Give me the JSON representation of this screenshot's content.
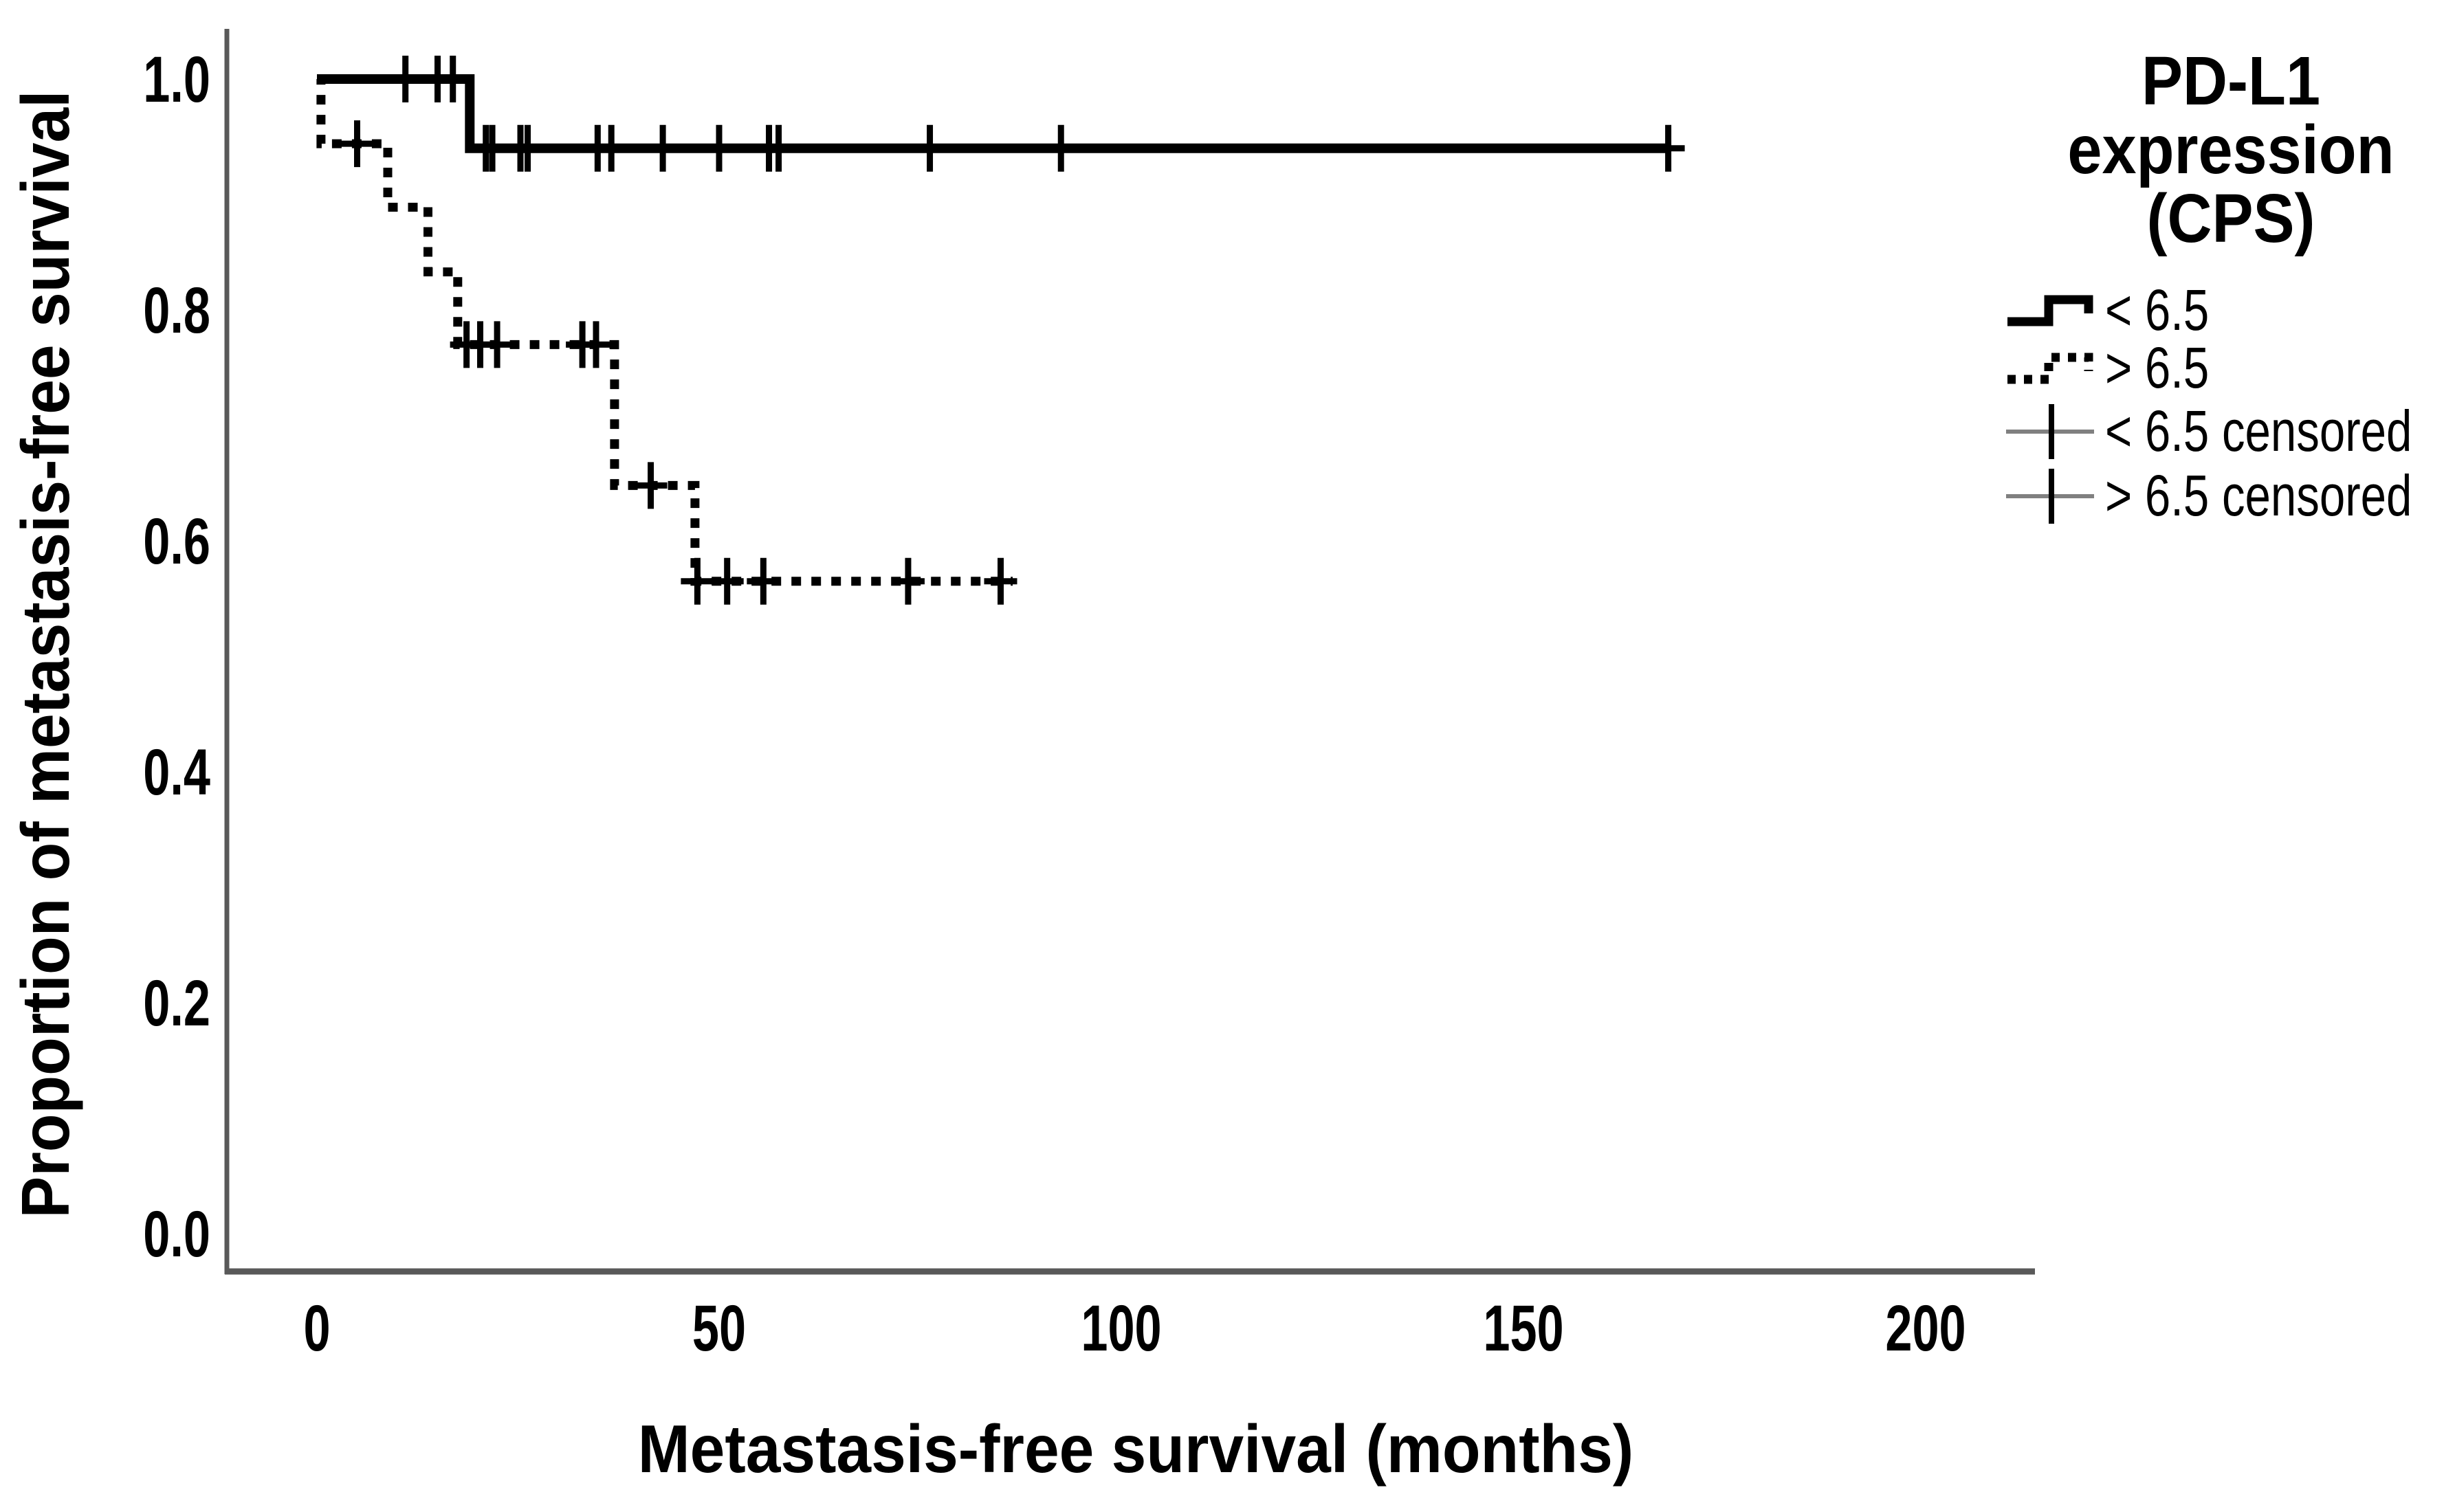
{
  "chart_data": {
    "type": "line",
    "subtype": "kaplan-meier-step",
    "xlabel": "Metastasis-free survival (months)",
    "ylabel": "Proportion of metastasis-free survival",
    "x_ticks": [
      0,
      50,
      100,
      150,
      200
    ],
    "y_ticks": [
      "0.0",
      "0.2",
      "0.4",
      "0.6",
      "0.8",
      "1.0"
    ],
    "xlim": [
      0,
      213
    ],
    "ylim": [
      0.0,
      1.0
    ],
    "grid": false,
    "legend": {
      "position": "right",
      "title_lines": [
        "PD-L1",
        "expression",
        "(CPS)"
      ],
      "entries": [
        {
          "label": "< 6.5",
          "style": "solid-step"
        },
        {
          "label": "> 6.5",
          "style": "dotted-step"
        },
        {
          "label": "< 6.5 censored",
          "style": "censor-mark"
        },
        {
          "label": "> 6.5 censored",
          "style": "censor-mark"
        }
      ]
    },
    "series": [
      {
        "name": "< 6.5",
        "line": "solid",
        "steps": [
          [
            0,
            1.0
          ],
          [
            19,
            1.0
          ],
          [
            19,
            0.94
          ],
          [
            168,
            0.94
          ]
        ],
        "censored": [
          [
            11,
            1.0
          ],
          [
            15,
            1.0
          ],
          [
            16.9,
            1.0
          ],
          [
            21,
            0.94
          ],
          [
            21.8,
            0.94
          ],
          [
            25.3,
            0.94
          ],
          [
            26.2,
            0.94
          ],
          [
            34.9,
            0.94
          ],
          [
            36.6,
            0.94
          ],
          [
            43,
            0.94
          ],
          [
            50,
            0.94
          ],
          [
            56.2,
            0.94
          ],
          [
            57.4,
            0.94
          ],
          [
            76.2,
            0.94
          ],
          [
            92.5,
            0.94
          ],
          [
            168,
            0.94
          ]
        ]
      },
      {
        "name": "> 6.5",
        "line": "dotted",
        "steps": [
          [
            0,
            1.0
          ],
          [
            0.5,
            1.0
          ],
          [
            0.5,
            0.944
          ],
          [
            8.8,
            0.944
          ],
          [
            8.8,
            0.889
          ],
          [
            13.8,
            0.889
          ],
          [
            13.8,
            0.833
          ],
          [
            17.5,
            0.833
          ],
          [
            17.5,
            0.77
          ],
          [
            37,
            0.77
          ],
          [
            37,
            0.648
          ],
          [
            47,
            0.648
          ],
          [
            47,
            0.565
          ],
          [
            86.5,
            0.565
          ]
        ],
        "censored": [
          [
            5,
            0.944
          ],
          [
            18.6,
            0.77
          ],
          [
            20.3,
            0.77
          ],
          [
            22.4,
            0.77
          ],
          [
            33,
            0.77
          ],
          [
            34.7,
            0.77
          ],
          [
            41.5,
            0.648
          ],
          [
            47.3,
            0.565
          ],
          [
            51,
            0.565
          ],
          [
            55.5,
            0.565
          ],
          [
            73.5,
            0.565
          ],
          [
            85,
            0.565
          ]
        ]
      }
    ],
    "colors": {
      "curve": "#000000",
      "axis": "#595959",
      "legend_censor_line": "#808080",
      "text": "#000000",
      "background": "#ffffff"
    }
  }
}
